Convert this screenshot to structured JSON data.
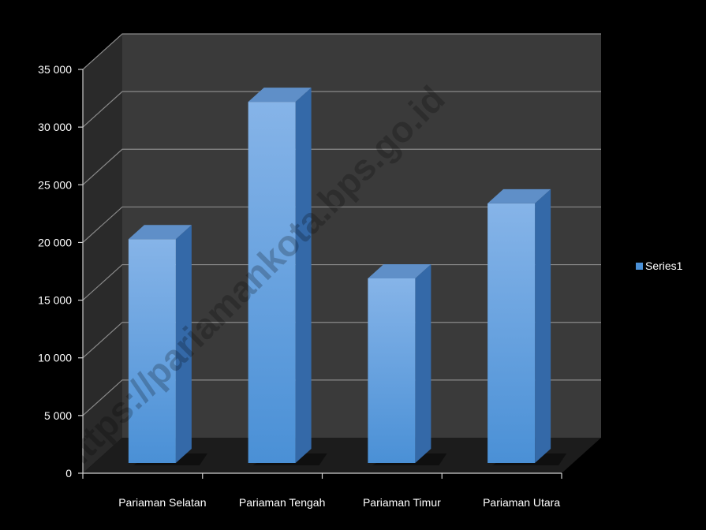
{
  "chart_data": {
    "type": "bar",
    "style": "3d-column",
    "categories": [
      "Pariaman Selatan",
      "Pariaman Tengah",
      "Pariaman Timur",
      "Pariaman Utara"
    ],
    "series": [
      {
        "name": "Series1",
        "values": [
          19400,
          31300,
          16000,
          22500
        ]
      }
    ],
    "ylim": [
      0,
      35000
    ],
    "yticks": [
      0,
      5000,
      10000,
      15000,
      20000,
      25000,
      30000,
      35000
    ],
    "ytick_labels": [
      "0",
      "5 000",
      "10 000",
      "15 000",
      "20 000",
      "25 000",
      "30 000",
      "35 000"
    ],
    "grid": true,
    "legend": "right",
    "title": "",
    "xlabel": "",
    "ylabel": "",
    "colors": {
      "background": "#000000",
      "back_wall": "#3a3a3a",
      "side_wall": "#2a2a2a",
      "floor": "#1c1c1c",
      "gridline": "#8a8a8a",
      "bar_front_top": "#86b4e8",
      "bar_front_bottom": "#4a90d6",
      "bar_side": "#3469a8",
      "bar_top": "#5f8fc8",
      "axis": "#cfcfcf",
      "text": "#ffffff"
    }
  },
  "watermark": "https://pariamankota.bps.go.id"
}
